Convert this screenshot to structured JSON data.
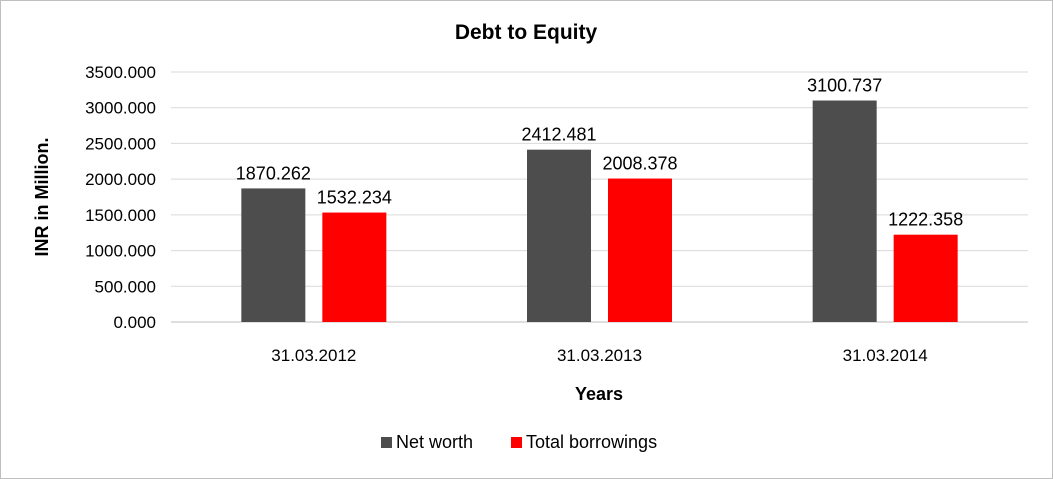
{
  "chart_data": {
    "type": "bar",
    "title": "Debt to Equity",
    "xlabel": "Years",
    "ylabel": "INR in Million.",
    "categories": [
      "31.03.2012",
      "31.03.2013",
      "31.03.2014"
    ],
    "series": [
      {
        "name": "Net worth",
        "color": "#4d4d4d",
        "values": [
          1870.262,
          2412.481,
          3100.737
        ],
        "labels": [
          "1870.262",
          "2412.481",
          "3100.737"
        ]
      },
      {
        "name": "Total borrowings",
        "color": "#ff0000",
        "values": [
          1532.234,
          2008.378,
          1222.358
        ],
        "labels": [
          "1532.234",
          "2008.378",
          "1222.358"
        ]
      }
    ],
    "ylim": [
      0,
      3500
    ],
    "yticks": [
      0,
      500,
      1000,
      1500,
      2000,
      2500,
      3000,
      3500
    ],
    "ytick_labels": [
      "0.000",
      "500.000",
      "1000.000",
      "1500.000",
      "2000.000",
      "2500.000",
      "3000.000",
      "3500.000"
    ],
    "grid": true,
    "legend_position": "bottom"
  }
}
